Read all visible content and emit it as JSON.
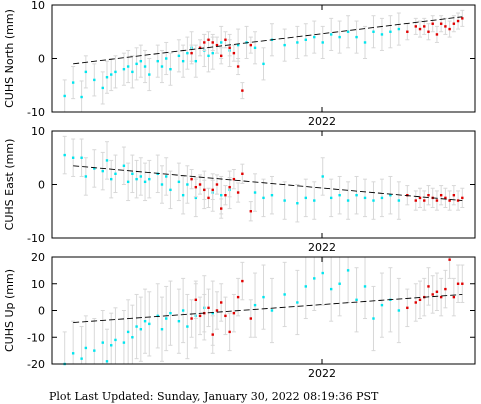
{
  "footer": {
    "label": "Plot Last Updated:",
    "timestamp": "Sunday, January 30, 2022 08:19:36 PST"
  },
  "colors": {
    "early_points": "#00e5ee",
    "recent_points": "#e00000",
    "error_bars": "#d8d8d8",
    "trend_line": "#000000"
  },
  "chart_data": [
    {
      "type": "scatter",
      "ylabel": "CUHS North (mm)",
      "ylim": [
        -10,
        10
      ],
      "yticks": [
        -10,
        0,
        10
      ],
      "xtick_label": "2022",
      "trend": [
        [
          0.05,
          -1.0
        ],
        [
          0.97,
          7.8
        ]
      ],
      "series": [
        {
          "color_key": "early_points",
          "x": [
            0.03,
            0.05,
            0.07,
            0.08,
            0.1,
            0.12,
            0.13,
            0.14,
            0.15,
            0.17,
            0.18,
            0.19,
            0.2,
            0.21,
            0.22,
            0.23,
            0.25,
            0.26,
            0.27,
            0.28,
            0.3,
            0.31,
            0.32,
            0.33,
            0.34,
            0.36,
            0.37,
            0.38,
            0.4,
            0.42,
            0.44,
            0.46,
            0.48,
            0.5,
            0.52,
            0.55,
            0.58,
            0.6,
            0.62,
            0.64,
            0.66,
            0.68,
            0.7,
            0.72,
            0.74,
            0.76,
            0.78,
            0.8,
            0.82
          ],
          "y": [
            -7.0,
            -4.5,
            -7.2,
            -2.5,
            -4.0,
            -5.5,
            -3.5,
            -3.0,
            -2.5,
            -2.0,
            -1.5,
            -2.5,
            -1.0,
            -0.5,
            -1.5,
            -3.0,
            -0.5,
            -1.5,
            0.0,
            -2.0,
            0.5,
            -0.5,
            1.0,
            2.0,
            -0.5,
            1.5,
            0.5,
            1.0,
            3.0,
            1.5,
            2.5,
            3.0,
            2.0,
            -1.0,
            3.5,
            2.5,
            3.0,
            3.5,
            4.0,
            3.0,
            4.5,
            4.0,
            5.0,
            4.0,
            3.0,
            5.0,
            4.5,
            5.0,
            5.5
          ],
          "err": 3.0
        },
        {
          "color_key": "recent_points",
          "x": [
            0.33,
            0.35,
            0.36,
            0.37,
            0.38,
            0.39,
            0.4,
            0.41,
            0.42,
            0.43,
            0.44,
            0.45,
            0.47,
            0.84,
            0.86,
            0.87,
            0.88,
            0.89,
            0.9,
            0.91,
            0.92,
            0.93,
            0.94,
            0.95,
            0.96,
            0.97
          ],
          "y": [
            1.0,
            2.0,
            3.0,
            3.5,
            3.0,
            2.5,
            0.5,
            3.5,
            2.0,
            1.0,
            -1.5,
            -6.0,
            2.5,
            5.0,
            6.0,
            5.5,
            6.0,
            5.0,
            6.5,
            4.5,
            6.5,
            6.0,
            5.5,
            6.5,
            7.0,
            7.5
          ],
          "err": 1.5
        }
      ]
    },
    {
      "type": "scatter",
      "ylabel": "CUHS East (mm)",
      "ylim": [
        -10,
        10
      ],
      "yticks": [
        -10,
        0,
        10
      ],
      "xtick_label": "2022",
      "trend": [
        [
          0.05,
          3.5
        ],
        [
          0.97,
          -3.0
        ]
      ],
      "series": [
        {
          "color_key": "early_points",
          "x": [
            0.03,
            0.05,
            0.07,
            0.08,
            0.1,
            0.12,
            0.13,
            0.14,
            0.15,
            0.17,
            0.18,
            0.19,
            0.2,
            0.21,
            0.22,
            0.23,
            0.25,
            0.26,
            0.27,
            0.28,
            0.3,
            0.31,
            0.32,
            0.34,
            0.36,
            0.38,
            0.4,
            0.42,
            0.48,
            0.5,
            0.52,
            0.55,
            0.58,
            0.6,
            0.62,
            0.64,
            0.66,
            0.68,
            0.7,
            0.72,
            0.74,
            0.76,
            0.78,
            0.8,
            0.82
          ],
          "y": [
            5.5,
            5.0,
            5.0,
            1.5,
            3.0,
            2.5,
            4.5,
            1.0,
            2.0,
            3.5,
            0.5,
            2.0,
            1.0,
            1.5,
            0.5,
            1.0,
            2.0,
            0.0,
            1.5,
            -1.0,
            0.5,
            -2.0,
            0.0,
            -2.5,
            -1.0,
            -1.5,
            -2.0,
            -1.0,
            -1.5,
            -2.5,
            -2.0,
            -3.0,
            -3.5,
            -2.5,
            -3.0,
            1.5,
            -2.5,
            -2.0,
            -3.0,
            -2.0,
            -2.5,
            -3.0,
            -2.5,
            -2.0,
            -3.0
          ],
          "err": 3.5
        },
        {
          "color_key": "recent_points",
          "x": [
            0.33,
            0.34,
            0.35,
            0.36,
            0.37,
            0.38,
            0.39,
            0.4,
            0.41,
            0.42,
            0.43,
            0.44,
            0.45,
            0.47,
            0.84,
            0.86,
            0.87,
            0.88,
            0.89,
            0.9,
            0.91,
            0.92,
            0.93,
            0.94,
            0.95,
            0.96,
            0.97
          ],
          "y": [
            1.0,
            -0.5,
            0.0,
            -1.0,
            -2.5,
            -1.0,
            0.0,
            -4.5,
            -2.0,
            -0.5,
            1.0,
            -1.5,
            2.0,
            -5.0,
            -2.0,
            -3.0,
            -2.5,
            -3.0,
            -2.0,
            -2.5,
            -3.0,
            -2.0,
            -2.5,
            -3.0,
            -2.0,
            -3.0,
            -2.5
          ],
          "err": 1.8
        }
      ]
    },
    {
      "type": "scatter",
      "ylabel": "CUHS Up (mm)",
      "ylim": [
        -20,
        20
      ],
      "yticks": [
        -20,
        -10,
        0,
        10,
        20
      ],
      "xtick_label": "2022",
      "trend": [
        [
          0.05,
          -4.5
        ],
        [
          0.97,
          6.0
        ]
      ],
      "series": [
        {
          "color_key": "early_points",
          "x": [
            0.03,
            0.05,
            0.07,
            0.08,
            0.1,
            0.12,
            0.13,
            0.14,
            0.15,
            0.17,
            0.18,
            0.19,
            0.2,
            0.21,
            0.22,
            0.23,
            0.25,
            0.26,
            0.27,
            0.28,
            0.3,
            0.31,
            0.32,
            0.34,
            0.36,
            0.38,
            0.48,
            0.5,
            0.52,
            0.55,
            0.58,
            0.6,
            0.62,
            0.64,
            0.66,
            0.68,
            0.7,
            0.72,
            0.74,
            0.76,
            0.78,
            0.8,
            0.82
          ],
          "y": [
            -20.0,
            -16.0,
            -18.0,
            -14.0,
            -15.0,
            -12.0,
            -19.0,
            -13.0,
            -11.0,
            -12.0,
            -8.0,
            -10.0,
            -6.0,
            -7.0,
            -4.0,
            -5.0,
            -2.0,
            -7.0,
            -3.0,
            -1.0,
            -4.0,
            0.0,
            -6.0,
            -2.0,
            1.0,
            -1.0,
            2.0,
            5.0,
            0.0,
            6.0,
            3.0,
            9.0,
            12.0,
            14.0,
            8.0,
            10.0,
            15.0,
            4.0,
            9.0,
            -3.0,
            2.0,
            4.0,
            0.0
          ],
          "err": 12.0
        },
        {
          "color_key": "recent_points",
          "x": [
            0.33,
            0.34,
            0.35,
            0.36,
            0.37,
            0.38,
            0.39,
            0.4,
            0.41,
            0.42,
            0.43,
            0.44,
            0.45,
            0.47,
            0.84,
            0.86,
            0.87,
            0.88,
            0.89,
            0.9,
            0.91,
            0.92,
            0.93,
            0.94,
            0.95,
            0.96,
            0.97
          ],
          "y": [
            -3.0,
            4.0,
            -2.0,
            -1.0,
            1.0,
            -9.0,
            0.0,
            3.0,
            -2.0,
            -8.0,
            -1.0,
            5.0,
            11.0,
            -3.0,
            1.0,
            3.0,
            4.0,
            5.0,
            9.0,
            6.0,
            7.0,
            5.0,
            8.0,
            19.0,
            5.0,
            10.0,
            10.0
          ],
          "err": 7.0
        }
      ]
    }
  ]
}
